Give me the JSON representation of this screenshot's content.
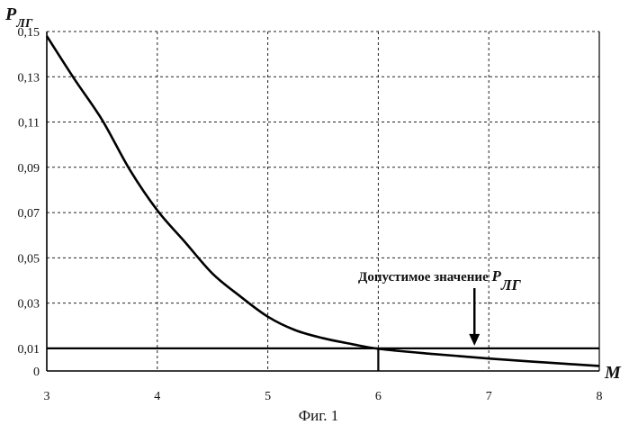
{
  "chart_data": {
    "type": "line",
    "ylabel": "P",
    "ylabel_sub": "ЛГ",
    "xlabel": "M",
    "xlim": [
      3,
      8
    ],
    "ylim": [
      0,
      0.15
    ],
    "x_ticks": [
      "3",
      "4",
      "5",
      "6",
      "7",
      "8"
    ],
    "y_ticks": [
      {
        "value": 0,
        "label": "0"
      },
      {
        "value": 0.01,
        "label": "0,01"
      },
      {
        "value": 0.03,
        "label": "0,03"
      },
      {
        "value": 0.05,
        "label": "0,05"
      },
      {
        "value": 0.07,
        "label": "0,07"
      },
      {
        "value": 0.09,
        "label": "0,09"
      },
      {
        "value": 0.11,
        "label": "0,11"
      },
      {
        "value": 0.13,
        "label": "0,13"
      },
      {
        "value": 0.15,
        "label": "0,15"
      }
    ],
    "grid": true,
    "series": [
      {
        "x": [
          3,
          3.25,
          3.5,
          3.75,
          4,
          4.25,
          4.5,
          4.75,
          5,
          5.25,
          5.5,
          5.75,
          6,
          6.5,
          7,
          7.5,
          8
        ],
        "y": [
          0.148,
          0.129,
          0.111,
          0.089,
          0.071,
          0.057,
          0.043,
          0.033,
          0.024,
          0.018,
          0.0145,
          0.012,
          0.0098,
          0.0075,
          0.0055,
          0.0038,
          0.0022
        ]
      }
    ],
    "threshold": {
      "value": 0.01,
      "label": "Допустимое значение",
      "label_symbol": "P",
      "label_symbol_sub": "ЛГ",
      "arrow_x": 6.87
    },
    "marker_x": 6
  },
  "caption": "Фиг. 1"
}
